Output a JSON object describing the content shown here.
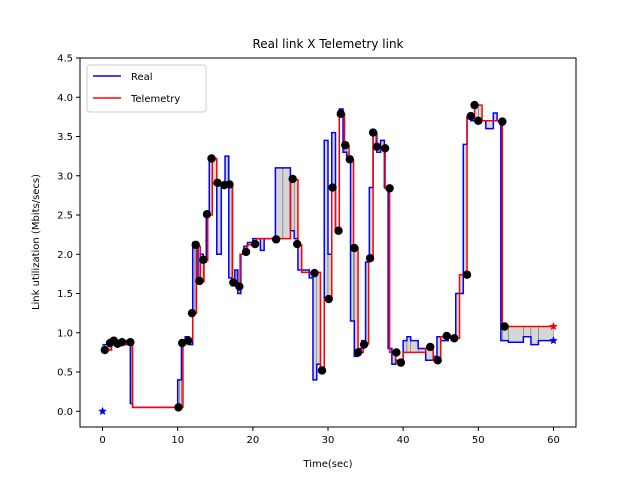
{
  "chart_data": {
    "type": "line",
    "title": "Real link X Telemetry link",
    "xlabel": "Time(sec)",
    "ylabel": "Link utilization (Mbits/secs)",
    "xlim": [
      -3,
      63
    ],
    "ylim": [
      -0.2,
      4.5
    ],
    "xticks": [
      0,
      10,
      20,
      30,
      40,
      50,
      60
    ],
    "yticks": [
      0.0,
      0.5,
      1.0,
      1.5,
      2.0,
      2.5,
      3.0,
      3.5,
      4.0,
      4.5
    ],
    "ytick_labels": [
      "0.0",
      "0.5",
      "1.0",
      "1.5",
      "2.0",
      "2.5",
      "3.0",
      "3.5",
      "4.0",
      "4.5"
    ],
    "grid": false,
    "legend_position": "top-left",
    "series": [
      {
        "name": "Real",
        "color": "#0000ff",
        "step": "post",
        "x": [
          0,
          0.3,
          1,
          2,
          3,
          3.7,
          4,
          10,
          10.5,
          11,
          11.5,
          12,
          12.3,
          12.7,
          13,
          13.4,
          13.8,
          14.2,
          14.6,
          15.2,
          15.8,
          16.3,
          16.8,
          17.2,
          17.6,
          18,
          18.4,
          18.8,
          19.3,
          20,
          21,
          21.5,
          22,
          23,
          24,
          25,
          25.5,
          26,
          26.5,
          27.5,
          28,
          28.5,
          29,
          29.5,
          30,
          30.5,
          31,
          31.5,
          32,
          32.5,
          33,
          33.5,
          34,
          34.5,
          35,
          35.5,
          36,
          36.5,
          37,
          37.5,
          38,
          38.5,
          39,
          39.5,
          40,
          40.5,
          41,
          42,
          43,
          44,
          44.5,
          45,
          46,
          47,
          48,
          48.5,
          49,
          49.5,
          50,
          51,
          52,
          52.5,
          53,
          54,
          56,
          57,
          58,
          60
        ],
        "y": [
          0.85,
          0.85,
          0.9,
          0.88,
          0.9,
          0.1,
          0.05,
          0.4,
          0.9,
          0.95,
          0.85,
          2.15,
          2.1,
          1.7,
          2.0,
          1.9,
          2.5,
          3.2,
          2.9,
          2.0,
          2.9,
          3.25,
          1.7,
          1.6,
          1.8,
          1.5,
          2.0,
          2.1,
          2.15,
          2.2,
          2.05,
          2.2,
          2.2,
          3.1,
          3.1,
          2.3,
          2.2,
          1.8,
          1.8,
          1.7,
          0.4,
          0.6,
          0.55,
          3.45,
          2.0,
          3.55,
          2.3,
          3.85,
          3.3,
          3.25,
          1.15,
          0.7,
          0.8,
          0.9,
          1.9,
          2.85,
          3.55,
          3.3,
          3.45,
          2.85,
          0.8,
          0.6,
          0.65,
          0.62,
          0.9,
          0.95,
          0.9,
          0.8,
          0.65,
          0.7,
          0.95,
          0.9,
          0.95,
          1.5,
          3.4,
          3.75,
          3.7,
          3.72,
          3.7,
          3.6,
          3.8,
          3.7,
          0.9,
          0.88,
          0.95,
          0.85,
          0.9,
          0.9
        ]
      },
      {
        "name": "Telemetry",
        "color": "#ff0000",
        "step": "post",
        "x": [
          0,
          0.2,
          1.2,
          2.5,
          3.8,
          4,
          10.2,
          10.7,
          11.3,
          12,
          12.5,
          13,
          13.5,
          14,
          14.6,
          15.2,
          16,
          16.7,
          17.3,
          17.8,
          18.3,
          19.2,
          19.8,
          20.5,
          21.5,
          23,
          25,
          26,
          26.5,
          28,
          29,
          29.5,
          30.5,
          31,
          31.5,
          32.2,
          32.8,
          33.4,
          34,
          34.7,
          35.4,
          36,
          36.4,
          37,
          37.6,
          38.2,
          39,
          40,
          41,
          43,
          44,
          45,
          46.5,
          47.5,
          48.5,
          49.5,
          50.5,
          52,
          53.2,
          60
        ],
        "y": [
          0.78,
          0.78,
          0.88,
          0.85,
          0.88,
          0.05,
          0.05,
          0.88,
          0.9,
          1.25,
          2.1,
          1.65,
          1.92,
          2.5,
          3.22,
          2.9,
          2.87,
          2.88,
          1.65,
          1.6,
          2.0,
          2.12,
          2.15,
          2.2,
          2.2,
          2.2,
          2.95,
          2.12,
          1.77,
          1.77,
          0.52,
          1.43,
          2.85,
          2.3,
          3.78,
          3.38,
          3.2,
          2.08,
          0.75,
          0.86,
          1.96,
          3.54,
          3.37,
          3.34,
          2.84,
          0.75,
          0.62,
          0.75,
          0.75,
          0.8,
          0.65,
          0.95,
          0.93,
          1.74,
          3.74,
          3.9,
          3.7,
          3.7,
          1.08,
          1.08
        ]
      }
    ],
    "markers": {
      "color": "#000000",
      "points": [
        [
          0.3,
          0.78
        ],
        [
          1,
          0.87
        ],
        [
          1.5,
          0.9
        ],
        [
          2,
          0.86
        ],
        [
          2.6,
          0.88
        ],
        [
          3.7,
          0.88
        ],
        [
          10.1,
          0.05
        ],
        [
          10.6,
          0.87
        ],
        [
          11.4,
          0.9
        ],
        [
          11.9,
          1.25
        ],
        [
          12.4,
          2.12
        ],
        [
          12.9,
          1.66
        ],
        [
          13.4,
          1.93
        ],
        [
          13.9,
          2.51
        ],
        [
          14.5,
          3.22
        ],
        [
          15.3,
          2.91
        ],
        [
          16.2,
          2.88
        ],
        [
          16.9,
          2.89
        ],
        [
          17.4,
          1.64
        ],
        [
          18.2,
          1.59
        ],
        [
          19.1,
          2.03
        ],
        [
          20.3,
          2.13
        ],
        [
          23.1,
          2.19
        ],
        [
          25.3,
          2.96
        ],
        [
          25.9,
          2.13
        ],
        [
          28.2,
          1.76
        ],
        [
          29.2,
          0.52
        ],
        [
          30.1,
          1.43
        ],
        [
          30.6,
          2.85
        ],
        [
          31.4,
          2.3
        ],
        [
          31.7,
          3.79
        ],
        [
          32.3,
          3.39
        ],
        [
          32.9,
          3.21
        ],
        [
          33.5,
          2.08
        ],
        [
          34.0,
          0.75
        ],
        [
          34.8,
          0.85
        ],
        [
          35.6,
          1.95
        ],
        [
          36.0,
          3.55
        ],
        [
          36.5,
          3.37
        ],
        [
          37.6,
          3.35
        ],
        [
          38.2,
          2.84
        ],
        [
          39.1,
          0.75
        ],
        [
          39.7,
          0.62
        ],
        [
          43.6,
          0.82
        ],
        [
          44.6,
          0.65
        ],
        [
          45.8,
          0.96
        ],
        [
          46.8,
          0.93
        ],
        [
          48.5,
          1.74
        ],
        [
          49.0,
          3.76
        ],
        [
          49.5,
          3.9
        ],
        [
          50.0,
          3.7
        ],
        [
          53.2,
          3.69
        ],
        [
          53.5,
          1.08
        ]
      ]
    },
    "end_markers": [
      {
        "series": "Real",
        "x": 0,
        "y": 0.0,
        "color": "#0000ff"
      },
      {
        "series": "Real",
        "x": 60,
        "y": 0.9,
        "color": "#0000ff"
      },
      {
        "series": "Telemetry",
        "x": 60,
        "y": 1.08,
        "color": "#ff0000"
      }
    ]
  }
}
